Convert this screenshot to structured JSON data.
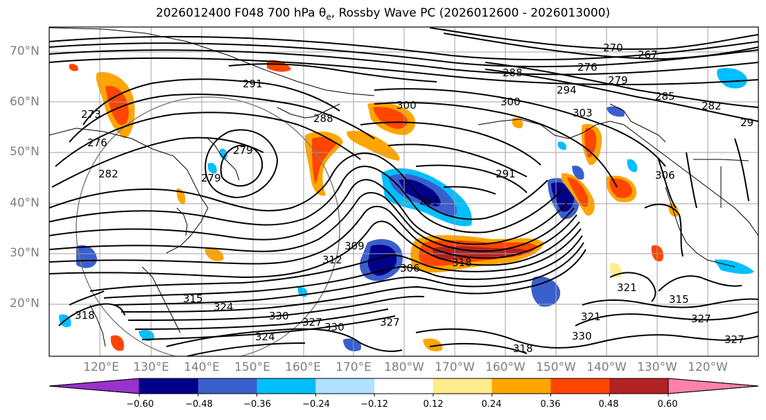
{
  "title": {
    "main": "2026012400 F048 700 hPa θ",
    "sub": "e",
    "rest": ", Rossby Wave PC (2026012600 - 2026013000)"
  },
  "lat_labels": [
    "70°N",
    "60°N",
    "50°N",
    "40°N",
    "30°N",
    "20°N"
  ],
  "lon_labels": [
    "120°E",
    "130°E",
    "140°E",
    "150°E",
    "160°E",
    "170°E",
    "180°W",
    "170°W",
    "160°W",
    "150°W",
    "140°W",
    "130°W",
    "120°W"
  ],
  "contour_labels": [
    "270",
    "267",
    "276",
    "279",
    "285",
    "282",
    "29",
    "288",
    "294",
    "291",
    "273",
    "276",
    "282",
    "279",
    "279",
    "300",
    "288",
    "303",
    "300",
    "306",
    "291",
    "297",
    "309",
    "312",
    "306",
    "318",
    "315",
    "315",
    "324",
    "318",
    "330",
    "327",
    "330",
    "324",
    "327",
    "321",
    "330",
    "327",
    "318",
    "321",
    "327"
  ],
  "colorbar": {
    "ticks": [
      "−0.60",
      "−0.48",
      "−0.36",
      "−0.24",
      "−0.12",
      "0.12",
      "0.24",
      "0.36",
      "0.48",
      "0.60"
    ],
    "colors": [
      "#9932cc",
      "#00008b",
      "#3a5fcd",
      "#00bfff",
      "#b0e2ff",
      "#ffffff",
      "#ffec8b",
      "#ffa500",
      "#ff4500",
      "#b22222",
      "#ff82ab"
    ]
  }
}
